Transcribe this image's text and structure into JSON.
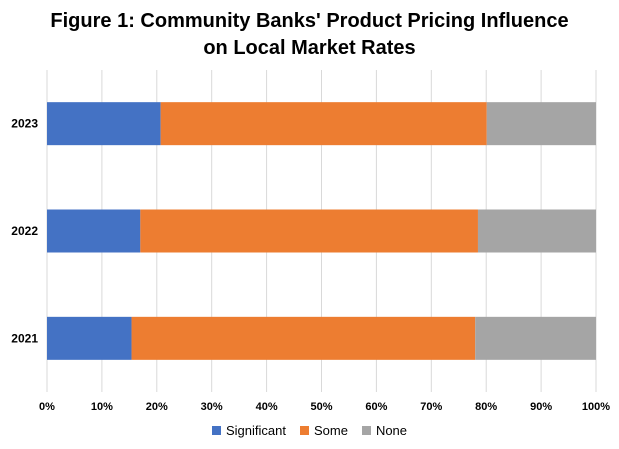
{
  "chart_data": {
    "type": "bar",
    "orientation": "horizontal",
    "stacked": "percent",
    "title_line1": "Figure 1: Community Banks' Product Pricing Influence",
    "title_line2": "on Local Market Rates",
    "categories": [
      "2023",
      "2022",
      "2021"
    ],
    "series": [
      {
        "name": "Significant",
        "color": "#4472C4",
        "values": [
          20.7,
          17.0,
          15.4
        ]
      },
      {
        "name": "Some",
        "color": "#ED7D31",
        "values": [
          59.4,
          61.5,
          62.6
        ]
      },
      {
        "name": "None",
        "color": "#A5A5A5",
        "values": [
          19.9,
          21.5,
          22.0
        ]
      }
    ],
    "xlim": [
      0,
      100
    ],
    "xticks": [
      "0%",
      "10%",
      "20%",
      "30%",
      "40%",
      "50%",
      "60%",
      "70%",
      "80%",
      "90%",
      "100%"
    ],
    "grid": true,
    "legend_position": "bottom"
  }
}
